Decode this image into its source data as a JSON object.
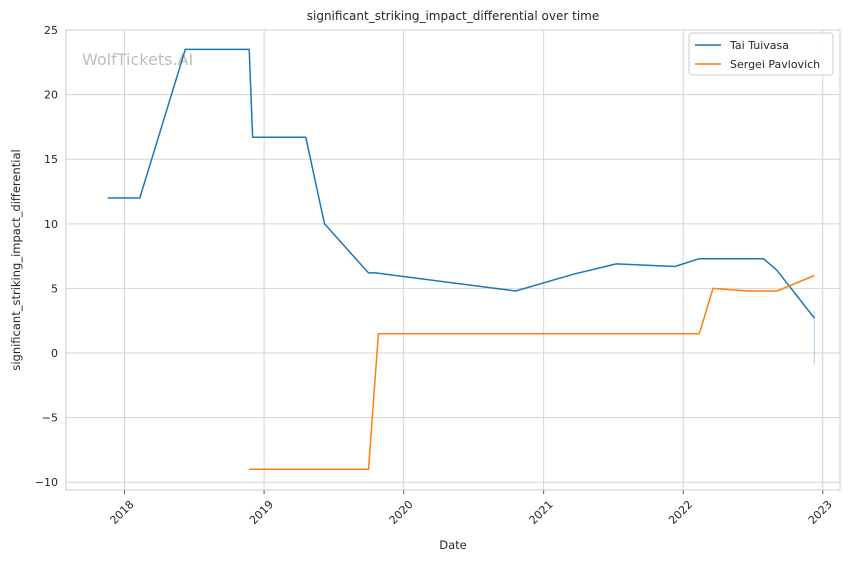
{
  "chart_data": {
    "type": "line",
    "title": "significant_striking_impact_differential over time",
    "xlabel": "Date",
    "ylabel": "significant_striking_impact_differential",
    "watermark": "WolfTickets.AI",
    "xlim": [
      "2017-08-01",
      "2023-02-15"
    ],
    "ylim": [
      -10.6,
      25
    ],
    "x_tick_labels": [
      "2018",
      "2019",
      "2020",
      "2021",
      "2022",
      "2023"
    ],
    "x_tick_values": [
      "2018-01-01",
      "2019-01-01",
      "2020-01-01",
      "2021-01-01",
      "2022-01-01",
      "2023-01-01"
    ],
    "y_tick_labels": [
      "−10",
      "−5",
      "0",
      "5",
      "10",
      "15",
      "20",
      "25"
    ],
    "y_tick_values": [
      -10,
      -5,
      0,
      5,
      10,
      15,
      20,
      25
    ],
    "grid": true,
    "legend_position": "top-right",
    "series": [
      {
        "name": "Tai Tuivasa",
        "color": "#1f77b4",
        "x": [
          "2017-11-18",
          "2018-02-10",
          "2018-06-09",
          "2018-11-23",
          "2018-12-02",
          "2019-04-20",
          "2019-06-08",
          "2019-10-01",
          "2019-10-20",
          "2020-10-20",
          "2021-03-20",
          "2021-07-10",
          "2021-12-10",
          "2022-02-12",
          "2022-07-30",
          "2022-09-03",
          "2022-12-10"
        ],
        "values": [
          12.0,
          12.0,
          23.5,
          23.5,
          16.7,
          16.7,
          10.0,
          6.2,
          6.2,
          4.8,
          6.1,
          6.9,
          6.7,
          7.3,
          7.3,
          6.4,
          2.7
        ]
      },
      {
        "name": "Sergei Pavlovich",
        "color": "#ff7f0e",
        "x": [
          "2018-11-23",
          "2019-10-01",
          "2019-10-27",
          "2022-02-12",
          "2022-03-20",
          "2022-06-20",
          "2022-09-03",
          "2022-12-10"
        ],
        "values": [
          -9.0,
          -9.0,
          1.5,
          1.5,
          5.0,
          4.8,
          4.8,
          6.0
        ]
      }
    ],
    "error_band": {
      "color": "#1f77b4",
      "x": "2022-12-10",
      "low": -0.9,
      "high": 3.3
    }
  }
}
